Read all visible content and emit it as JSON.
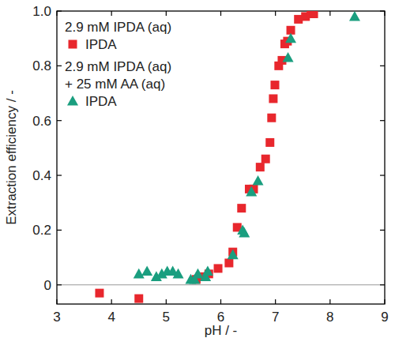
{
  "chart_data": {
    "type": "scatter",
    "x_label": "pH / -",
    "y_label": "Extraction efficiency / -",
    "xlim": [
      3,
      9
    ],
    "xticks": [
      3,
      4,
      5,
      6,
      7,
      8,
      9
    ],
    "ylim": [
      -0.07,
      1.0
    ],
    "yticks": [
      0,
      0.2,
      0.4,
      0.6,
      0.8,
      {
        "value": 1.0,
        "label": "1.0"
      }
    ],
    "hlines": [
      0
    ],
    "grid": false,
    "legend": "top-left",
    "series": [
      {
        "name": "IPDA",
        "heading": [
          "2.9 mM IPDA (aq)"
        ],
        "color": "#e8272d",
        "marker": "square",
        "x": [
          3.78,
          4.5,
          5.55,
          5.62,
          5.78,
          5.95,
          6.15,
          6.22,
          6.3,
          6.38,
          6.52,
          6.6,
          6.72,
          6.82,
          6.9,
          6.93,
          6.96,
          6.99,
          7.06,
          7.12,
          7.17,
          7.22,
          7.28,
          7.42,
          7.55,
          7.65,
          7.7
        ],
        "values": [
          -0.03,
          -0.05,
          0.02,
          0.03,
          0.04,
          0.06,
          0.08,
          0.12,
          0.21,
          0.28,
          0.35,
          0.35,
          0.43,
          0.46,
          0.52,
          0.61,
          0.68,
          0.73,
          0.8,
          0.82,
          0.88,
          0.89,
          0.93,
          0.97,
          0.98,
          0.99,
          0.99
        ]
      },
      {
        "name": "IPDA",
        "heading": [
          "2.9 mM IPDA (aq)",
          "+ 25 mM AA (aq)"
        ],
        "color": "#1a9e7f",
        "marker": "triangle",
        "x": [
          4.5,
          4.65,
          4.82,
          4.92,
          5.02,
          5.12,
          5.22,
          5.45,
          5.52,
          5.58,
          5.72,
          5.76,
          6.22,
          6.4,
          6.43,
          6.56,
          6.68,
          7.23,
          7.28,
          8.45
        ],
        "values": [
          0.04,
          0.05,
          0.03,
          0.04,
          0.05,
          0.05,
          0.04,
          0.02,
          0.02,
          0.04,
          0.03,
          0.05,
          0.11,
          0.2,
          0.19,
          0.34,
          0.38,
          0.83,
          0.9,
          0.98
        ]
      }
    ]
  }
}
